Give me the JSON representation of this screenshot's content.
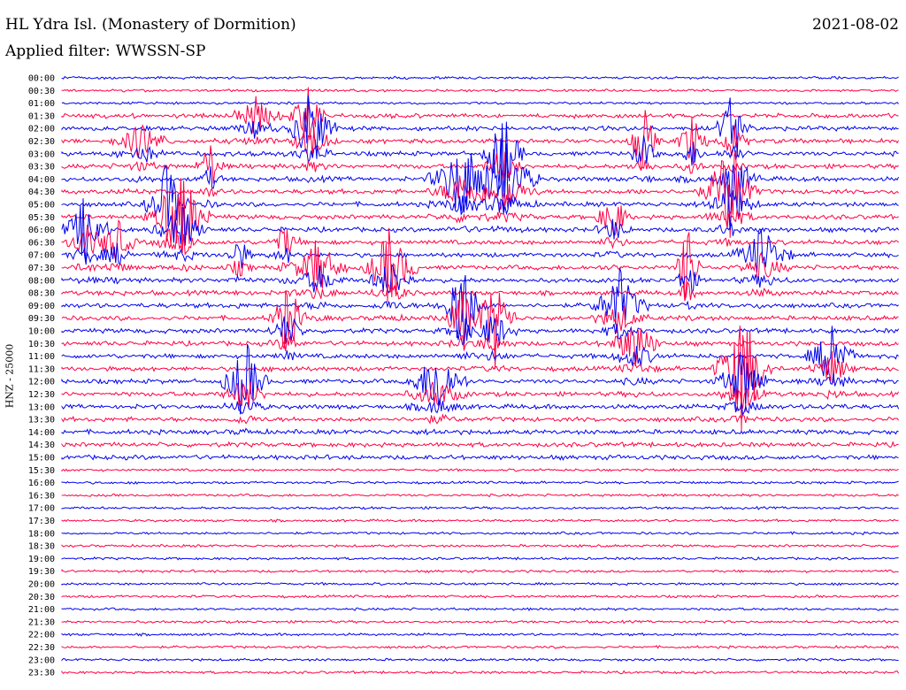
{
  "header": {
    "station": "HL Ydra Isl. (Monastery of Dormition)",
    "filter_label": "Applied filter:",
    "filter_value": "WWSSN-SP",
    "date": "2021-08-02"
  },
  "axis": {
    "channel_label": "HNZ - 25000"
  },
  "colors": {
    "blue": "#0000ee",
    "red": "#ff0044"
  },
  "chart_data": {
    "type": "line",
    "title": "HL Ydra Isl. (Monastery of Dormition)",
    "xlabel": "",
    "ylabel": "HNZ - 25000",
    "trace_labels": [
      "00:00",
      "00:30",
      "01:00",
      "01:30",
      "02:00",
      "02:30",
      "03:00",
      "03:30",
      "04:00",
      "04:30",
      "05:00",
      "05:30",
      "06:00",
      "06:30",
      "07:00",
      "07:30",
      "08:00",
      "08:30",
      "09:00",
      "09:30",
      "10:00",
      "10:30",
      "11:00",
      "11:30",
      "12:00",
      "12:30",
      "13:00",
      "13:30",
      "14:00",
      "14:30",
      "15:00",
      "15:30",
      "16:00",
      "16:30",
      "17:00",
      "17:30",
      "18:00",
      "18:30",
      "19:00",
      "19:30",
      "20:00",
      "20:30",
      "21:00",
      "21:30",
      "22:00",
      "22:30",
      "23:00",
      "23:30"
    ],
    "trace_colors_cycle": [
      "blue",
      "red"
    ],
    "minutes_per_trace": 30,
    "grid": false,
    "legend": "none"
  }
}
